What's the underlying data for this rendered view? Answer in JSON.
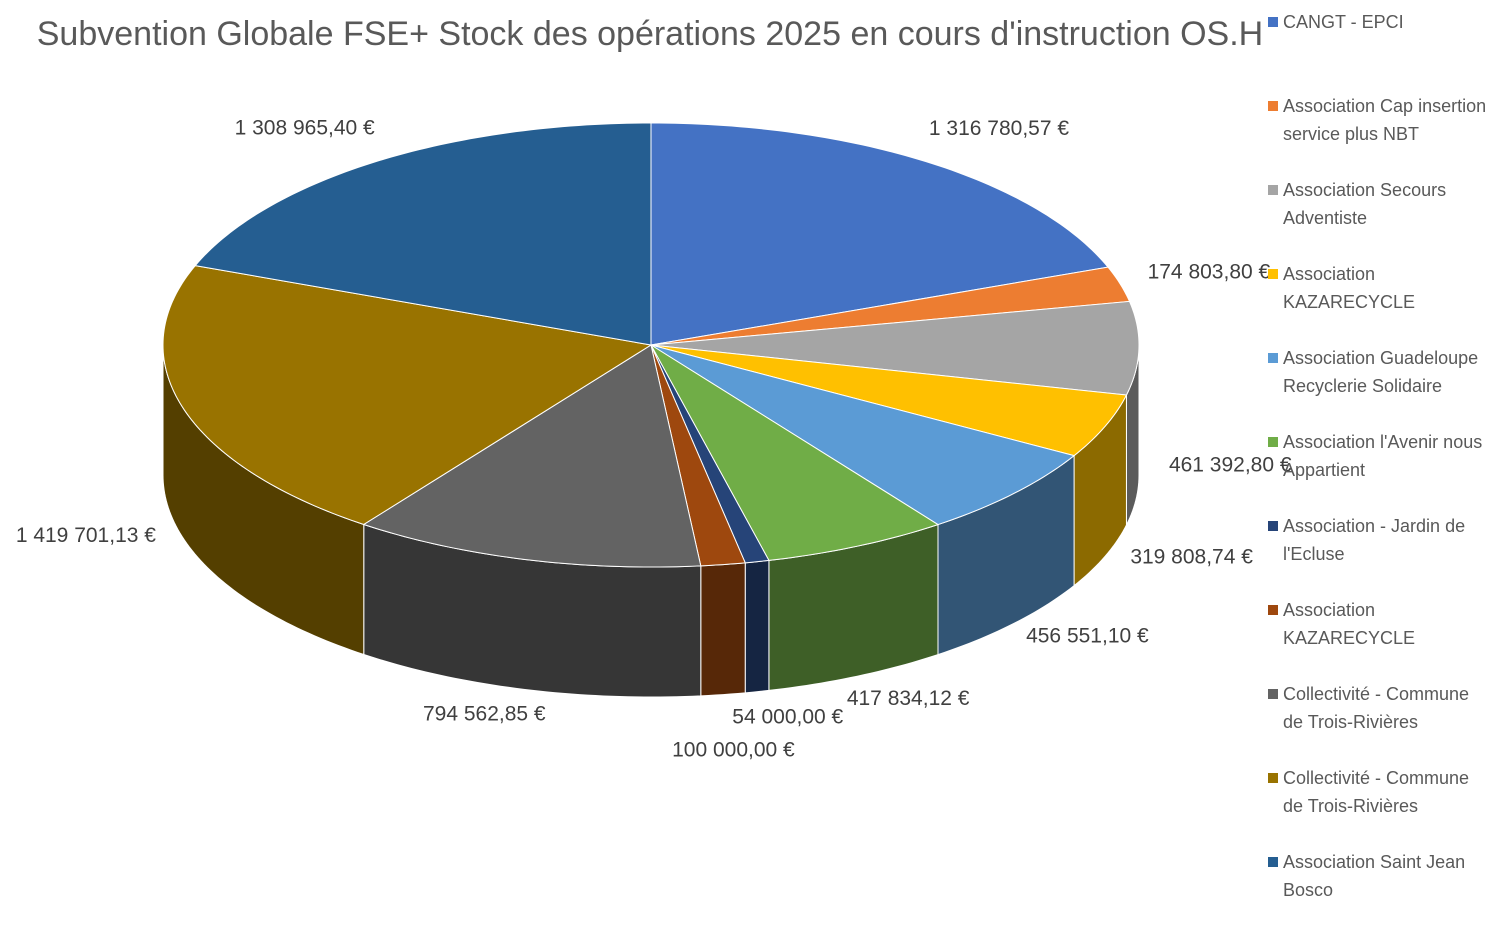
{
  "chart_data": {
    "type": "pie3d",
    "title": "Subvention Globale FSE+ Stock des opérations 2025 en cours d'instruction OS.H",
    "categories": [
      "CANGT - EPCI",
      "Association Cap insertion service plus NBT",
      "Association Secours Adventiste",
      "Association KAZARECYCLE",
      "Association Guadeloupe Recyclerie Solidaire",
      "Association l'Avenir nous Appartient",
      "Association - Jardin de l'Ecluse",
      "Association KAZARECYCLE",
      "Collectivité - Commune de Trois-Rivières",
      "Collectivité - Commune de Trois-Rivières",
      "Association Saint Jean Bosco"
    ],
    "values": [
      1316780.57,
      174803.8,
      461392.8,
      319808.74,
      456551.1,
      417834.12,
      54000.0,
      100000.0,
      794562.85,
      1419701.13,
      1308965.4
    ],
    "value_labels": [
      "1 316 780,57 €",
      "174 803,80 €",
      "461 392,80 €",
      "319 808,74 €",
      "456 551,10 €",
      "417 834,12 €",
      "54 000,00 €",
      "100 000,00 €",
      "794 562,85 €",
      "1 419 701,13 €",
      "1 308 965,40 €"
    ],
    "colors": [
      "#4472c4",
      "#ed7d31",
      "#a5a5a5",
      "#ffc000",
      "#5b9bd5",
      "#70ad47",
      "#264478",
      "#9e480e",
      "#636363",
      "#997300",
      "#255e91"
    ],
    "legend": "right"
  }
}
